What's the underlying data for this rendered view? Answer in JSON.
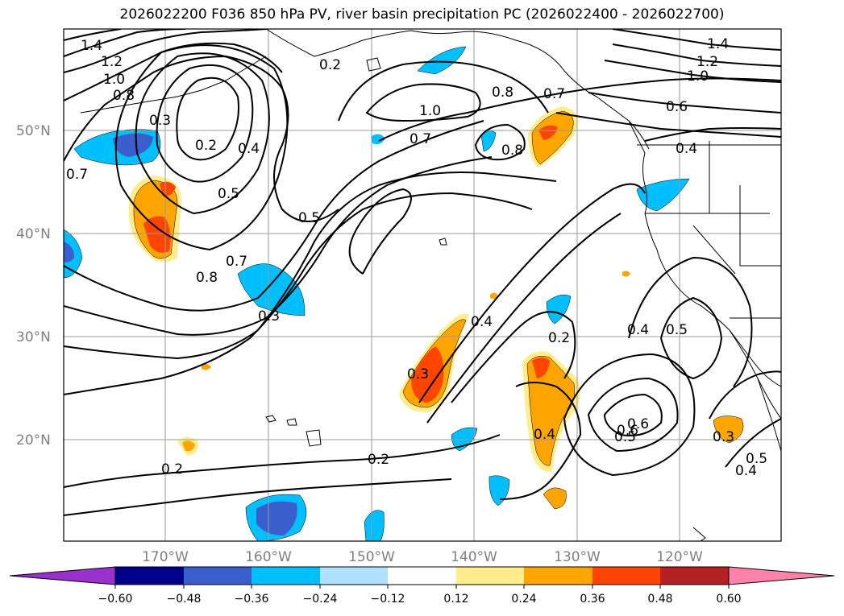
{
  "title": "2026022200 F036 850 hPa PV, river basin precipitation PC (2026022400 - 2026022700)",
  "lat_labels": [
    "50°N",
    "40°N",
    "30°N",
    "20°N"
  ],
  "lon_labels": [
    "170°W",
    "160°W",
    "150°W",
    "140°W",
    "130°W",
    "120°W"
  ],
  "contour_labels": [
    "1.4",
    "1.2",
    "1.0",
    "0.8",
    "0.7",
    "0.3",
    "0.2",
    "0.4",
    "0.5",
    "0.5",
    "0.8",
    "0.7",
    "0.3",
    "0.2",
    "1.0",
    "0.7",
    "0.8",
    "0.8",
    "0.6",
    "1.4",
    "1.2",
    "1.0",
    "0.6",
    "0.4",
    "0.5",
    "0.4",
    "0.4",
    "0.3",
    "0.2",
    "0.4",
    "0.6",
    "0.5",
    "0.5",
    "0.3",
    "0.4",
    "0.2",
    "0.2",
    "0.7"
  ],
  "colorbar": {
    "ticks": [
      "−0.60",
      "−0.48",
      "−0.36",
      "−0.24",
      "−0.12",
      "0.12",
      "0.24",
      "0.36",
      "0.48",
      "0.60"
    ],
    "colors": [
      "#9932cc",
      "#00008b",
      "#3a5fcd",
      "#00bfff",
      "#b0e2ff",
      "#ffffff",
      "#ffec8b",
      "#ffa500",
      "#ff4500",
      "#b22222",
      "#ff82ab"
    ]
  },
  "fill_colors": {
    "neg_dark": "#3a5fcd",
    "neg_mid": "#00bfff",
    "neg_light": "#b0e2ff",
    "pos_light": "#ffec8b",
    "pos_mid": "#ffa500",
    "pos_dark": "#ff4500"
  }
}
